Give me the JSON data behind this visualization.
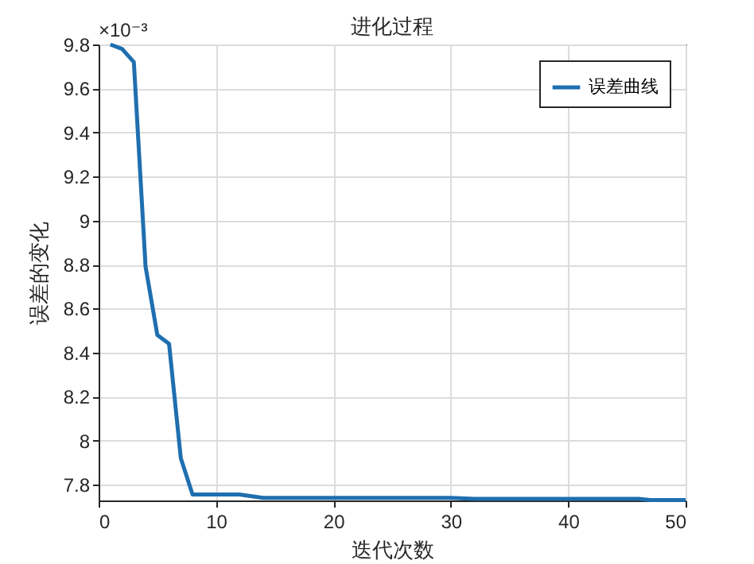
{
  "chart_data": {
    "type": "line",
    "title": "进化过程",
    "xlabel": "迭代次数",
    "ylabel": "误差的变化",
    "annotations": [
      "×10⁻³"
    ],
    "x": [
      1,
      2,
      3,
      4,
      5,
      6,
      7,
      8,
      12,
      14,
      30,
      32,
      46,
      47,
      50
    ],
    "series": [
      {
        "name": "误差曲线",
        "color": "#1f6fb0",
        "values": [
          9.8,
          9.78,
          9.72,
          8.79,
          8.48,
          8.44,
          7.92,
          7.755,
          7.755,
          7.74,
          7.74,
          7.735,
          7.735,
          7.73,
          7.73
        ]
      }
    ],
    "xlim": [
      0,
      50
    ],
    "xticks": [
      0,
      10,
      20,
      30,
      40,
      50
    ],
    "ylim": [
      7.728,
      9.8
    ],
    "yticks": [
      7.8,
      8,
      8.2,
      8.4,
      8.6,
      8.8,
      9,
      9.2,
      9.4,
      9.6,
      9.8
    ],
    "grid": true,
    "legend": "top right",
    "marker": "none",
    "line_style": "solid"
  }
}
